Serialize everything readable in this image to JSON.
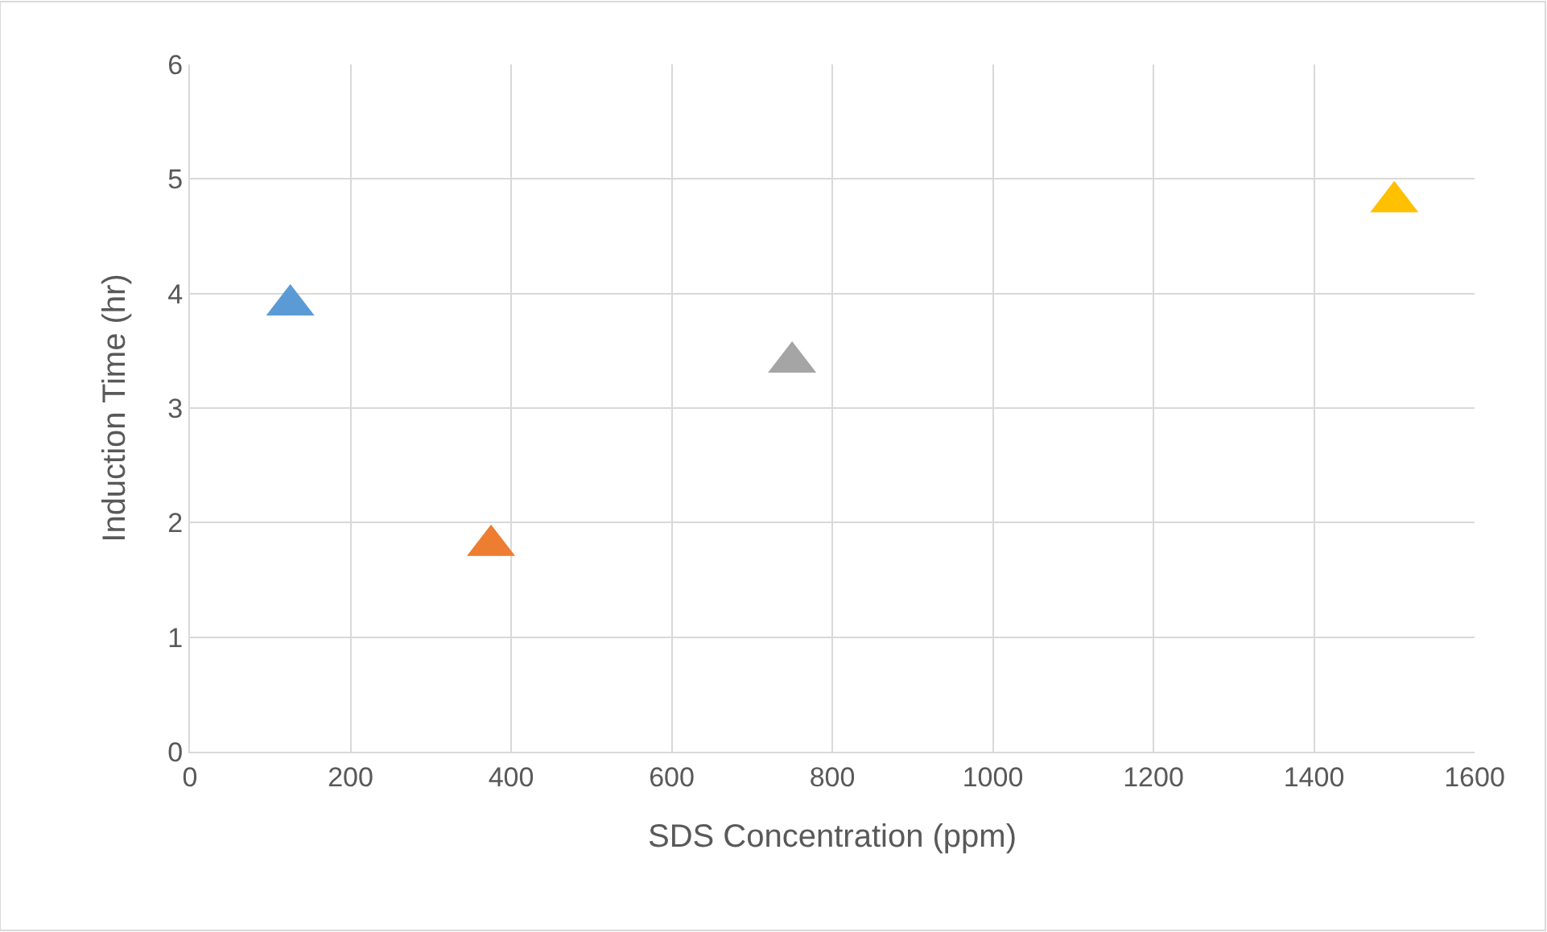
{
  "chart_data": {
    "type": "scatter",
    "xlabel": "SDS Concentration (ppm)",
    "ylabel": "Induction Time (hr)",
    "x": [
      125,
      375,
      750,
      1500
    ],
    "values": [
      3.9,
      1.8,
      3.4,
      4.8
    ],
    "colors": [
      "#5b9bd5",
      "#ed7d31",
      "#a5a5a5",
      "#ffc000"
    ],
    "marker": "triangle",
    "grid": true,
    "xlim": [
      0,
      1600
    ],
    "xticks": [
      0,
      200,
      400,
      600,
      800,
      1000,
      1200,
      1400,
      1600
    ],
    "ylim": [
      0,
      6
    ],
    "yticks": [
      0,
      1,
      2,
      3,
      4,
      5,
      6
    ]
  }
}
